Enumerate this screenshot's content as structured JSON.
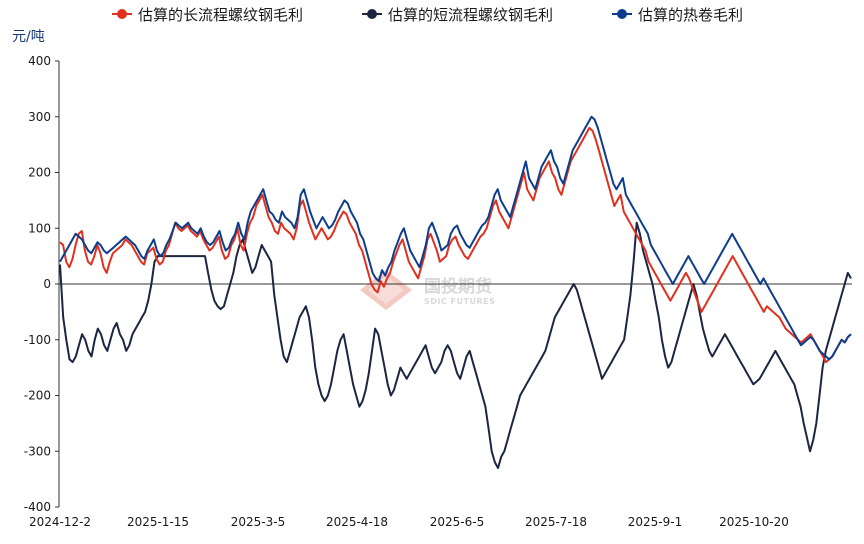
{
  "chart_data": {
    "type": "line",
    "ylabel": "元/吨",
    "ylim": [
      -400,
      400
    ],
    "yticks": [
      400,
      300,
      200,
      100,
      0,
      -100,
      -200,
      -300,
      -400
    ],
    "x_tick_labels": [
      "2024-12-2",
      "2025-1-15",
      "2025-3-5",
      "2025-4-18",
      "2025-6-5",
      "2025-7-18",
      "2025-9-1",
      "2025-10-20"
    ],
    "legend_position": "top",
    "grid": false,
    "watermark": {
      "cn": "国投期货",
      "en": "SDIC FUTURES"
    },
    "series": [
      {
        "name": "估算的长流程螺纹钢毛利",
        "color": "#e0301e",
        "values": [
          75,
          70,
          40,
          30,
          45,
          70,
          90,
          95,
          60,
          40,
          35,
          50,
          70,
          55,
          30,
          20,
          40,
          55,
          60,
          65,
          70,
          80,
          75,
          70,
          60,
          50,
          40,
          35,
          55,
          60,
          65,
          45,
          35,
          40,
          60,
          70,
          90,
          110,
          100,
          95,
          100,
          105,
          95,
          90,
          85,
          95,
          80,
          70,
          60,
          65,
          75,
          85,
          60,
          45,
          50,
          70,
          80,
          100,
          70,
          60,
          90,
          110,
          120,
          140,
          150,
          160,
          140,
          120,
          110,
          95,
          90,
          110,
          100,
          95,
          90,
          80,
          100,
          140,
          150,
          130,
          110,
          95,
          80,
          90,
          100,
          90,
          80,
          85,
          95,
          110,
          120,
          130,
          125,
          110,
          100,
          90,
          70,
          60,
          40,
          20,
          0,
          -10,
          -15,
          5,
          -5,
          10,
          20,
          40,
          55,
          70,
          80,
          60,
          40,
          30,
          20,
          10,
          30,
          50,
          80,
          90,
          75,
          60,
          40,
          45,
          50,
          70,
          80,
          85,
          70,
          60,
          50,
          45,
          55,
          65,
          75,
          85,
          90,
          100,
          120,
          140,
          150,
          130,
          120,
          110,
          100,
          120,
          140,
          160,
          180,
          200,
          170,
          160,
          150,
          170,
          190,
          200,
          210,
          220,
          200,
          190,
          170,
          160,
          180,
          200,
          220,
          230,
          240,
          250,
          260,
          270,
          280,
          275,
          260,
          240,
          220,
          200,
          180,
          160,
          140,
          150,
          160,
          130,
          120,
          110,
          100,
          90,
          80,
          70,
          60,
          40,
          30,
          20,
          10,
          0,
          -10,
          -20,
          -30,
          -20,
          -10,
          0,
          10,
          20,
          10,
          -5,
          -20,
          -35,
          -50,
          -40,
          -30,
          -20,
          -10,
          0,
          10,
          20,
          30,
          40,
          50,
          40,
          30,
          20,
          10,
          0,
          -10,
          -20,
          -30,
          -40,
          -50,
          -40,
          -45,
          -50,
          -55,
          -60,
          -70,
          -80,
          -85,
          -90,
          -95,
          -100,
          -105,
          -100,
          -95,
          -90,
          -100,
          -110,
          -120,
          -130,
          -140,
          -135,
          -130,
          -120,
          -110,
          -100,
          -105,
          -95,
          -90
        ]
      },
      {
        "name": "估算的短流程螺纹钢毛利",
        "color": "#1c2541",
        "values": [
          35,
          -60,
          -100,
          -135,
          -140,
          -130,
          -110,
          -90,
          -100,
          -120,
          -130,
          -100,
          -80,
          -90,
          -110,
          -120,
          -100,
          -80,
          -70,
          -90,
          -100,
          -120,
          -110,
          -90,
          -80,
          -70,
          -60,
          -50,
          -30,
          0,
          40,
          50,
          50,
          50,
          50,
          50,
          50,
          50,
          50,
          50,
          50,
          50,
          50,
          50,
          50,
          50,
          50,
          20,
          -10,
          -30,
          -40,
          -45,
          -40,
          -20,
          0,
          20,
          50,
          70,
          80,
          60,
          40,
          20,
          30,
          50,
          70,
          60,
          50,
          40,
          -20,
          -60,
          -100,
          -130,
          -140,
          -120,
          -100,
          -80,
          -60,
          -50,
          -40,
          -60,
          -100,
          -150,
          -180,
          -200,
          -210,
          -200,
          -180,
          -150,
          -120,
          -100,
          -90,
          -120,
          -150,
          -180,
          -200,
          -220,
          -210,
          -190,
          -160,
          -120,
          -80,
          -90,
          -120,
          -150,
          -180,
          -200,
          -190,
          -170,
          -150,
          -160,
          -170,
          -160,
          -150,
          -140,
          -130,
          -120,
          -110,
          -130,
          -150,
          -160,
          -150,
          -140,
          -120,
          -110,
          -120,
          -140,
          -160,
          -170,
          -150,
          -130,
          -120,
          -140,
          -160,
          -180,
          -200,
          -220,
          -260,
          -300,
          -320,
          -330,
          -310,
          -300,
          -280,
          -260,
          -240,
          -220,
          -200,
          -190,
          -180,
          -170,
          -160,
          -150,
          -140,
          -130,
          -120,
          -100,
          -80,
          -60,
          -50,
          -40,
          -30,
          -20,
          -10,
          0,
          -10,
          -30,
          -50,
          -70,
          -90,
          -110,
          -130,
          -150,
          -170,
          -160,
          -150,
          -140,
          -130,
          -120,
          -110,
          -100,
          -60,
          -20,
          40,
          110,
          90,
          60,
          40,
          20,
          0,
          -30,
          -60,
          -100,
          -130,
          -150,
          -140,
          -120,
          -100,
          -80,
          -60,
          -40,
          -20,
          0,
          -20,
          -50,
          -80,
          -100,
          -120,
          -130,
          -120,
          -110,
          -100,
          -90,
          -100,
          -110,
          -120,
          -130,
          -140,
          -150,
          -160,
          -170,
          -180,
          -175,
          -170,
          -160,
          -150,
          -140,
          -130,
          -120,
          -130,
          -140,
          -150,
          -160,
          -170,
          -180,
          -200,
          -220,
          -250,
          -275,
          -300,
          -280,
          -250,
          -200,
          -150,
          -120,
          -100,
          -80,
          -60,
          -40,
          -20,
          0,
          20,
          10
        ]
      },
      {
        "name": "估算的热卷毛利",
        "color": "#0d3d8c",
        "values": [
          40,
          50,
          60,
          70,
          80,
          90,
          85,
          80,
          70,
          60,
          55,
          65,
          75,
          70,
          60,
          55,
          60,
          65,
          70,
          75,
          80,
          85,
          80,
          75,
          70,
          60,
          50,
          45,
          60,
          70,
          80,
          60,
          50,
          55,
          70,
          80,
          95,
          110,
          105,
          100,
          105,
          110,
          100,
          95,
          90,
          100,
          85,
          75,
          70,
          75,
          85,
          95,
          75,
          60,
          65,
          80,
          90,
          110,
          90,
          80,
          110,
          130,
          140,
          150,
          160,
          170,
          150,
          130,
          125,
          115,
          110,
          130,
          120,
          115,
          110,
          100,
          120,
          160,
          170,
          150,
          130,
          115,
          100,
          110,
          120,
          110,
          100,
          105,
          115,
          130,
          140,
          150,
          145,
          130,
          120,
          110,
          90,
          80,
          60,
          40,
          20,
          10,
          5,
          25,
          15,
          30,
          40,
          60,
          75,
          90,
          100,
          80,
          60,
          50,
          40,
          30,
          50,
          70,
          100,
          110,
          95,
          80,
          60,
          65,
          70,
          90,
          100,
          105,
          90,
          80,
          70,
          65,
          75,
          85,
          95,
          105,
          110,
          120,
          140,
          160,
          170,
          150,
          140,
          130,
          120,
          140,
          160,
          180,
          200,
          220,
          190,
          180,
          170,
          190,
          210,
          220,
          230,
          240,
          220,
          210,
          190,
          180,
          200,
          220,
          240,
          250,
          260,
          270,
          280,
          290,
          300,
          295,
          280,
          260,
          240,
          220,
          200,
          180,
          170,
          180,
          190,
          160,
          150,
          140,
          130,
          120,
          110,
          100,
          90,
          70,
          60,
          50,
          40,
          30,
          20,
          10,
          0,
          10,
          20,
          30,
          40,
          50,
          40,
          30,
          20,
          10,
          0,
          10,
          20,
          30,
          40,
          50,
          60,
          70,
          80,
          90,
          80,
          70,
          60,
          50,
          40,
          30,
          20,
          10,
          0,
          10,
          0,
          -10,
          -20,
          -30,
          -40,
          -50,
          -60,
          -70,
          -80,
          -90,
          -100,
          -110,
          -105,
          -100,
          -95,
          -100,
          -110,
          -120,
          -125,
          -130,
          -135,
          -130,
          -120,
          -110,
          -100,
          -105,
          -95,
          -90
        ]
      }
    ]
  }
}
